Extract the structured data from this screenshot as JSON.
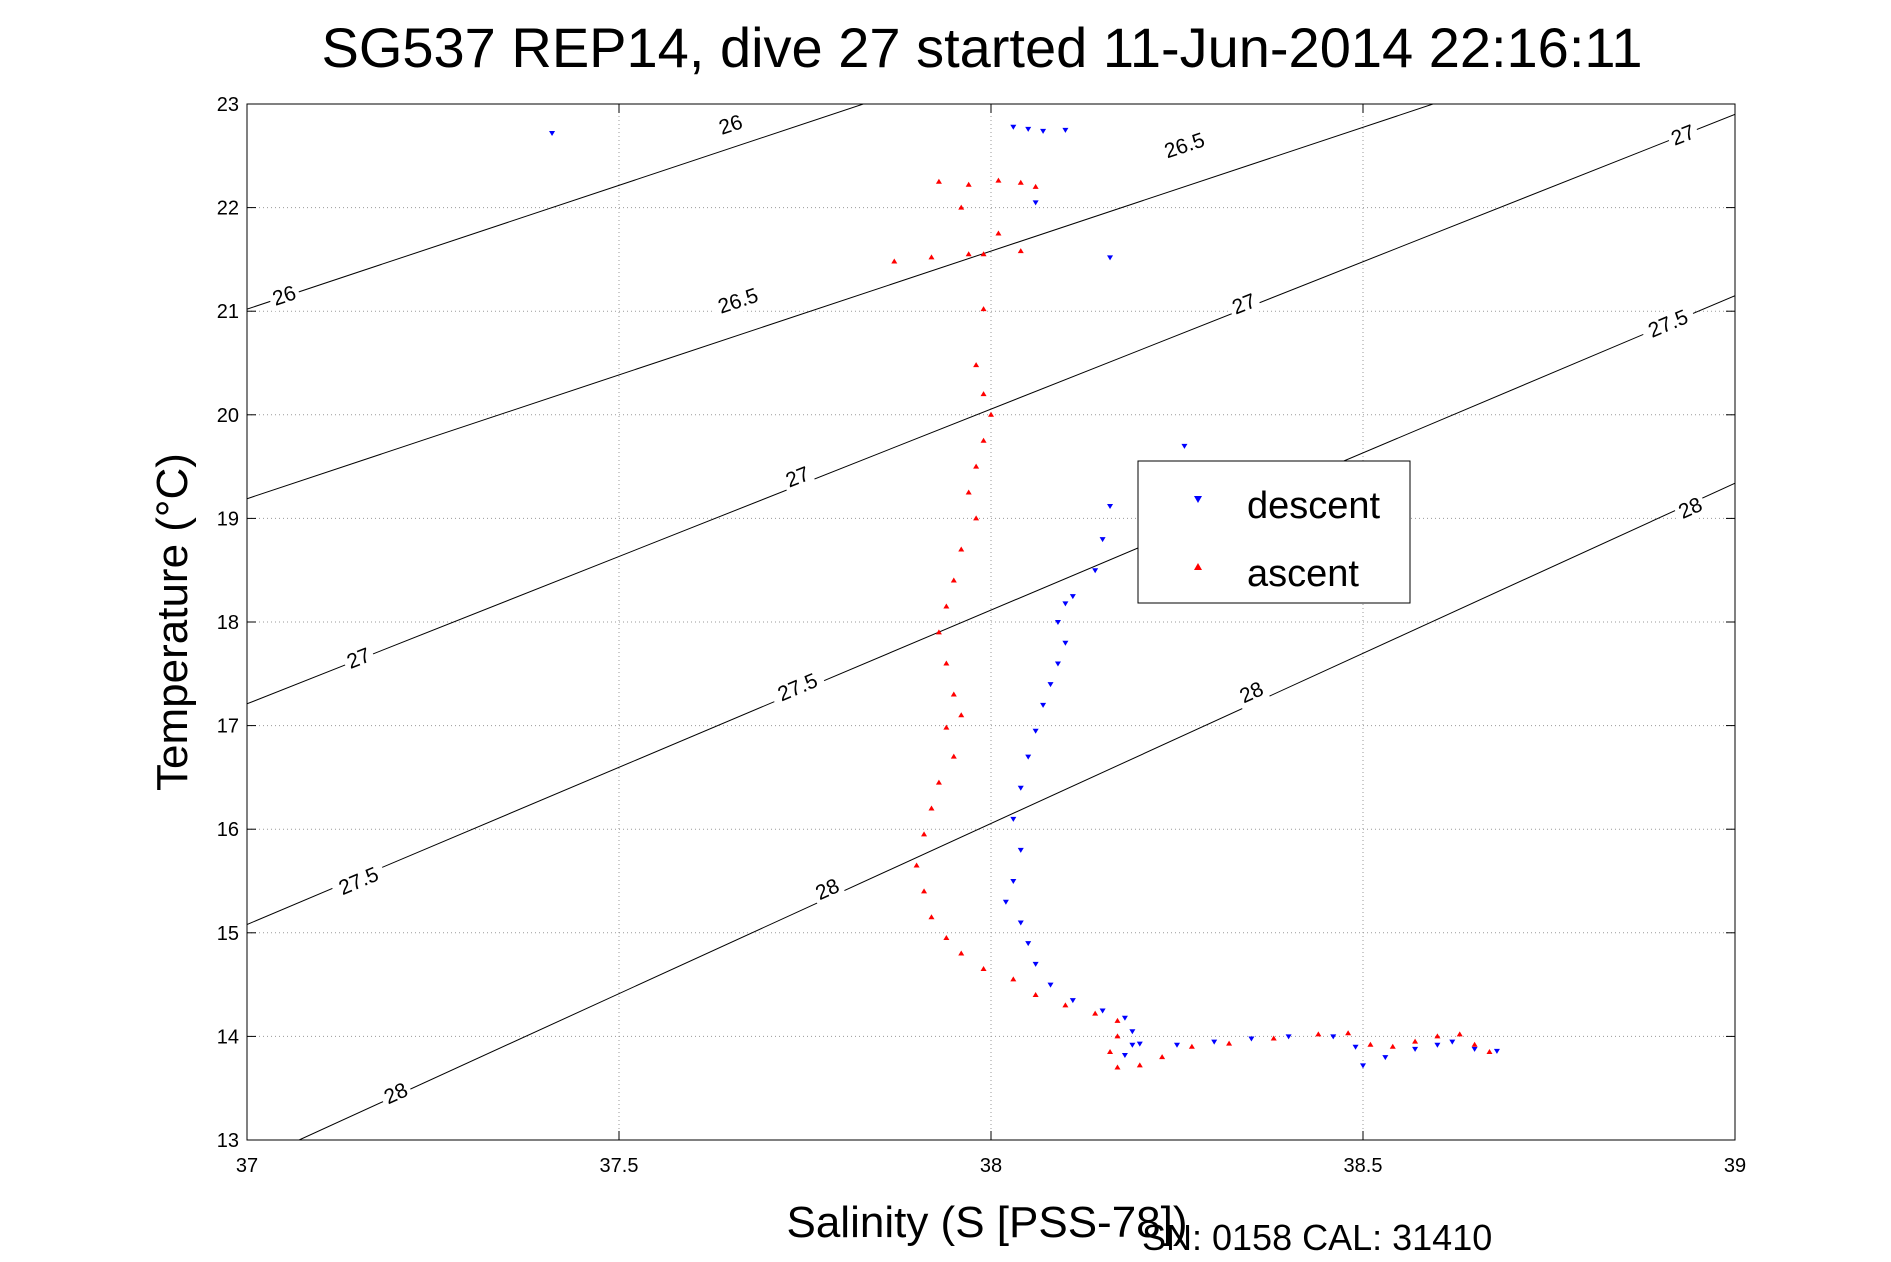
{
  "chart_data": {
    "type": "scatter",
    "title": "SG537 REP14, dive 27 started 11-Jun-2014 22:16:11",
    "xlabel": "Salinity (S [PSS-78])",
    "ylabel": "Temperature (°C)",
    "footer": "SN: 0158  CAL: 31410",
    "xlim": [
      37,
      39
    ],
    "ylim": [
      13,
      23
    ],
    "xticks": [
      "37",
      "37.5",
      "38",
      "38.5",
      "39"
    ],
    "yticks": [
      "13",
      "14",
      "15",
      "16",
      "17",
      "18",
      "19",
      "20",
      "21",
      "22",
      "23"
    ],
    "grid": true,
    "legend_position": "center-right",
    "contours": [
      {
        "label": "26",
        "segment": [
          [
            37,
            21.02
          ],
          [
            39,
            25.8
          ]
        ]
      },
      {
        "label": "26.5",
        "segment": [
          [
            37,
            19.19
          ],
          [
            39,
            23.97
          ]
        ]
      },
      {
        "label": "27",
        "segment": [
          [
            37,
            17.21
          ],
          [
            39,
            22.9
          ]
        ]
      },
      {
        "label": "27.5",
        "segment": [
          [
            37,
            15.08
          ],
          [
            39,
            21.15
          ]
        ]
      },
      {
        "label": "28",
        "segment": [
          [
            37.07,
            13
          ],
          [
            39,
            19.34
          ]
        ]
      }
    ],
    "contour_labels": [
      {
        "text": "26",
        "at": [
          37.05,
          21.15
        ]
      },
      {
        "text": "26",
        "at": [
          37.65,
          22.8
        ]
      },
      {
        "text": "26.5",
        "at": [
          37.66,
          21.1
        ]
      },
      {
        "text": "26.5",
        "at": [
          38.26,
          22.6
        ]
      },
      {
        "text": "27",
        "at": [
          37.15,
          17.65
        ]
      },
      {
        "text": "27",
        "at": [
          37.74,
          19.4
        ]
      },
      {
        "text": "27",
        "at": [
          38.34,
          21.07
        ]
      },
      {
        "text": "27",
        "at": [
          38.93,
          22.7
        ]
      },
      {
        "text": "27.5",
        "at": [
          37.15,
          15.5
        ]
      },
      {
        "text": "27.5",
        "at": [
          37.74,
          17.37
        ]
      },
      {
        "text": "27.5",
        "at": [
          38.91,
          20.88
        ]
      },
      {
        "text": "28",
        "at": [
          37.2,
          13.45
        ]
      },
      {
        "text": "28",
        "at": [
          37.78,
          15.42
        ]
      },
      {
        "text": "28",
        "at": [
          38.35,
          17.32
        ]
      },
      {
        "text": "28",
        "at": [
          38.94,
          19.1
        ]
      }
    ],
    "series": [
      {
        "name": "descent",
        "color": "#0000ff",
        "marker": "triangle-down",
        "points": [
          [
            37.41,
            22.72
          ],
          [
            38.03,
            22.78
          ],
          [
            38.05,
            22.76
          ],
          [
            38.07,
            22.74
          ],
          [
            38.1,
            22.75
          ],
          [
            38.06,
            22.05
          ],
          [
            38.16,
            21.52
          ],
          [
            38.26,
            19.7
          ],
          [
            38.16,
            19.12
          ],
          [
            38.15,
            18.8
          ],
          [
            38.14,
            18.5
          ],
          [
            38.11,
            18.25
          ],
          [
            38.1,
            18.18
          ],
          [
            38.09,
            18.0
          ],
          [
            38.1,
            17.8
          ],
          [
            38.09,
            17.6
          ],
          [
            38.08,
            17.4
          ],
          [
            38.07,
            17.2
          ],
          [
            38.06,
            16.95
          ],
          [
            38.05,
            16.7
          ],
          [
            38.04,
            16.4
          ],
          [
            38.03,
            16.1
          ],
          [
            38.04,
            15.8
          ],
          [
            38.03,
            15.5
          ],
          [
            38.02,
            15.3
          ],
          [
            38.04,
            15.1
          ],
          [
            38.05,
            14.9
          ],
          [
            38.06,
            14.7
          ],
          [
            38.08,
            14.5
          ],
          [
            38.11,
            14.35
          ],
          [
            38.15,
            14.25
          ],
          [
            38.18,
            14.18
          ],
          [
            38.19,
            14.05
          ],
          [
            38.19,
            13.92
          ],
          [
            38.18,
            13.82
          ],
          [
            38.2,
            13.93
          ],
          [
            38.25,
            13.92
          ],
          [
            38.3,
            13.95
          ],
          [
            38.35,
            13.98
          ],
          [
            38.4,
            14.0
          ],
          [
            38.46,
            14.0
          ],
          [
            38.49,
            13.9
          ],
          [
            38.5,
            13.72
          ],
          [
            38.53,
            13.8
          ],
          [
            38.57,
            13.88
          ],
          [
            38.6,
            13.92
          ],
          [
            38.62,
            13.95
          ],
          [
            38.65,
            13.88
          ],
          [
            38.68,
            13.86
          ]
        ]
      },
      {
        "name": "ascent",
        "color": "#ff0000",
        "marker": "triangle-up",
        "points": [
          [
            37.93,
            22.25
          ],
          [
            37.97,
            22.22
          ],
          [
            38.01,
            22.26
          ],
          [
            38.04,
            22.24
          ],
          [
            38.06,
            22.2
          ],
          [
            37.96,
            22.0
          ],
          [
            38.01,
            21.75
          ],
          [
            37.97,
            21.55
          ],
          [
            37.92,
            21.52
          ],
          [
            37.87,
            21.48
          ],
          [
            37.99,
            21.55
          ],
          [
            38.04,
            21.58
          ],
          [
            37.99,
            21.02
          ],
          [
            37.98,
            20.48
          ],
          [
            37.99,
            20.2
          ],
          [
            38.0,
            20.0
          ],
          [
            37.99,
            19.75
          ],
          [
            37.98,
            19.5
          ],
          [
            37.97,
            19.25
          ],
          [
            37.98,
            19.0
          ],
          [
            37.96,
            18.7
          ],
          [
            37.95,
            18.4
          ],
          [
            37.94,
            18.15
          ],
          [
            37.93,
            17.9
          ],
          [
            37.94,
            17.6
          ],
          [
            37.95,
            17.3
          ],
          [
            37.96,
            17.1
          ],
          [
            37.94,
            16.98
          ],
          [
            37.95,
            16.7
          ],
          [
            37.93,
            16.45
          ],
          [
            37.92,
            16.2
          ],
          [
            37.91,
            15.95
          ],
          [
            37.9,
            15.65
          ],
          [
            37.91,
            15.4
          ],
          [
            37.92,
            15.15
          ],
          [
            37.94,
            14.95
          ],
          [
            37.96,
            14.8
          ],
          [
            37.99,
            14.65
          ],
          [
            38.03,
            14.55
          ],
          [
            38.06,
            14.4
          ],
          [
            38.1,
            14.3
          ],
          [
            38.14,
            14.22
          ],
          [
            38.17,
            14.15
          ],
          [
            38.17,
            14.0
          ],
          [
            38.16,
            13.85
          ],
          [
            38.17,
            13.7
          ],
          [
            38.2,
            13.72
          ],
          [
            38.23,
            13.8
          ],
          [
            38.27,
            13.9
          ],
          [
            38.32,
            13.93
          ],
          [
            38.38,
            13.98
          ],
          [
            38.44,
            14.02
          ],
          [
            38.48,
            14.03
          ],
          [
            38.51,
            13.92
          ],
          [
            38.54,
            13.9
          ],
          [
            38.57,
            13.95
          ],
          [
            38.6,
            14.0
          ],
          [
            38.63,
            14.02
          ],
          [
            38.65,
            13.92
          ],
          [
            38.67,
            13.85
          ]
        ]
      }
    ]
  }
}
